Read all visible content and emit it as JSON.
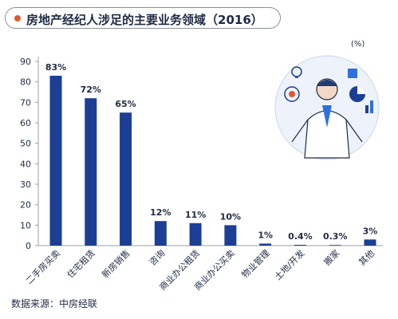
{
  "title": "房地产经纪人涉足的主要业务领域（2016）",
  "source": "数据来源：中房经联",
  "colors": {
    "bar": "#1c3e95",
    "axis": "#9aa0a8",
    "title_dot": "#e2592e",
    "text": "#1f2a44"
  },
  "chart_data": {
    "type": "bar",
    "title": "房地产经纪人涉足的主要业务领域（2016）",
    "ylabel": "(%)",
    "xlabel": "",
    "ylim": [
      0,
      90
    ],
    "yticks": [
      0,
      10,
      20,
      30,
      40,
      50,
      60,
      70,
      80,
      90
    ],
    "grid": false,
    "legend": "none",
    "categories": [
      "二手房买卖",
      "住宅租赁",
      "新房销售",
      "咨询",
      "商业办公租赁",
      "商业办公买卖",
      "物业管理",
      "土地/开发",
      "搬家",
      "其他"
    ],
    "values": [
      83,
      72,
      65,
      12,
      11,
      10,
      1,
      0.4,
      0.3,
      3
    ],
    "data_labels": [
      "83%",
      "72%",
      "65%",
      "12%",
      "11%",
      "10%",
      "1%",
      "0.4%",
      "0.3%",
      "3%"
    ]
  }
}
